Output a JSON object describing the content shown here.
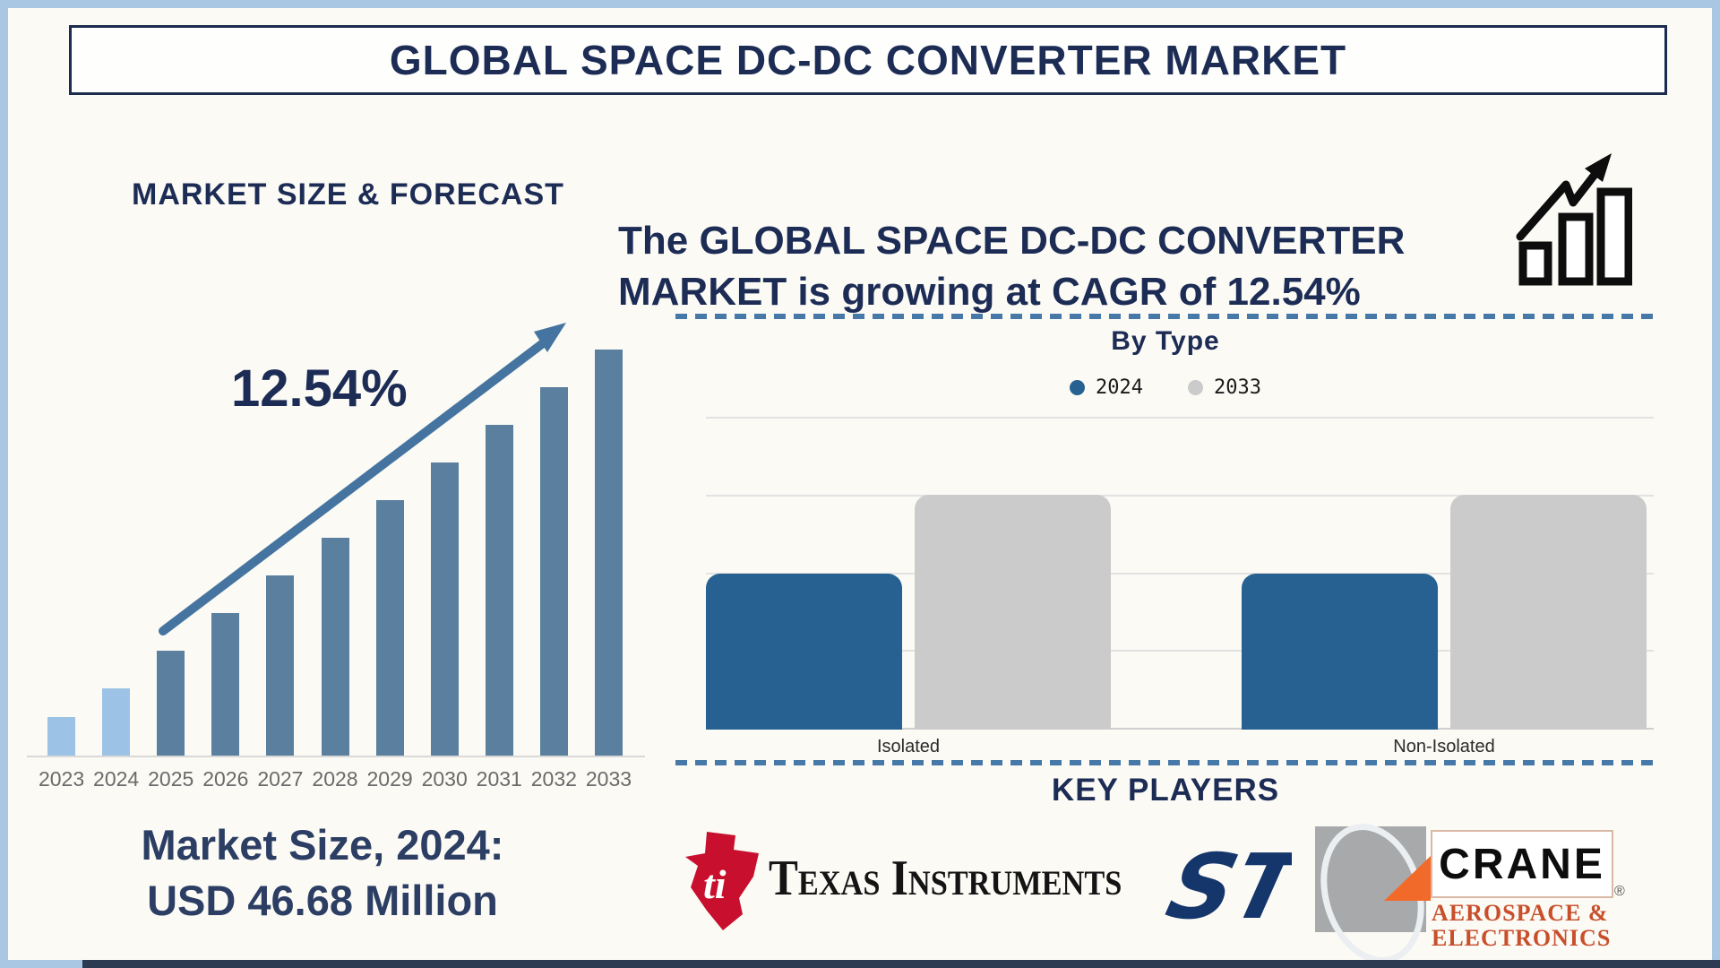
{
  "page": {
    "title": "GLOBAL SPACE DC-DC CONVERTER MARKET"
  },
  "left": {
    "section_title": "MARKET SIZE & FORECAST",
    "cagr_label": "12.54%",
    "market_size_line1": "Market Size, 2024:",
    "market_size_line2": "USD 46.68 Million"
  },
  "right": {
    "growth_line1": "The GLOBAL SPACE DC-DC CONVERTER",
    "growth_line2": "MARKET is growing at CAGR of 12.54%",
    "by_type_title": "By Type",
    "key_players_title": "KEY PLAYERS"
  },
  "players": {
    "ti": {
      "wordmark": "Texas Instruments",
      "bug_text": "ti"
    },
    "st": {
      "glyph": "ST"
    },
    "crane": {
      "name": "CRANE",
      "sub1": "AEROSPACE &",
      "sub2": "ELECTRONICS",
      "reg": "®"
    }
  },
  "colors": {
    "navy_text": "#1c2c55",
    "steel_arrow": "#44749f",
    "historical_bar": "#9cc3e6",
    "forecast_bar": "#5a7f9f",
    "blue_2024": "#266191",
    "gray_2033": "#cbcbcb",
    "outer_border": "#a9c6e2",
    "dashed_divider": "#4678a8"
  },
  "chart_data": [
    {
      "id": "market-size-forecast",
      "type": "bar",
      "title": "MARKET SIZE & FORECAST",
      "categories": [
        "2023",
        "2024",
        "2025",
        "2026",
        "2027",
        "2028",
        "2029",
        "2030",
        "2031",
        "2032",
        "2033"
      ],
      "values_relative_pct_of_max": [
        9.5,
        16.6,
        25.8,
        35.1,
        44.4,
        53.6,
        62.9,
        72.2,
        81.5,
        90.7,
        100
      ],
      "value_axis": "unlabeled-illustrative",
      "grid": false,
      "annotations": {
        "cagr": "12.54%",
        "labeled_point": {
          "year": "2024",
          "value": "USD 46.68 Million"
        }
      },
      "bar_colors": {
        "2023": "#9cc3e6",
        "2024": "#9cc3e6",
        "default": "#5a7f9f"
      }
    },
    {
      "id": "by-type",
      "type": "bar",
      "title": "By Type",
      "categories": [
        "Isolated",
        "Non-Isolated"
      ],
      "series": [
        {
          "name": "2024",
          "color": "#266191",
          "values_relative_pct": [
            50,
            50
          ]
        },
        {
          "name": "2033",
          "color": "#cbcbcb",
          "values_relative_pct": [
            75,
            75
          ]
        }
      ],
      "value_axis": "unlabeled",
      "grid": true,
      "legend_position": "top"
    }
  ]
}
